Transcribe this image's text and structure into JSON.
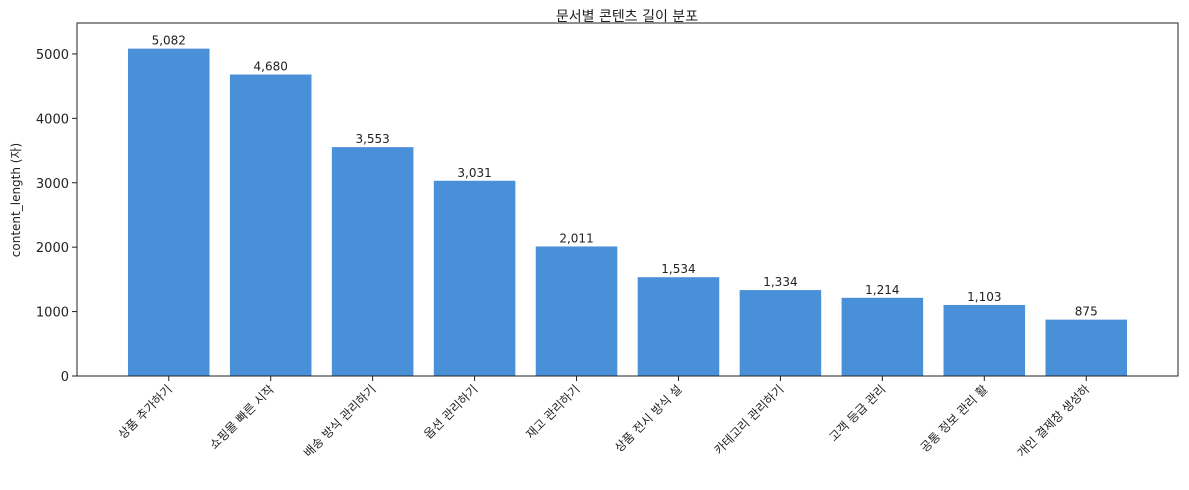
{
  "chart_data": {
    "type": "bar",
    "title": "문서별 콘텐츠 길이 분포",
    "y_label": "content_length (자)",
    "categories": [
      "상품 추가하기",
      "쇼핑몰 빠른 시작",
      "배송 방식 관리하기",
      "옵션 관리하기",
      "재고 관리하기",
      "상품 전시 방식 설",
      "카테고리 관리하기",
      "고객 등급 관리",
      "공통 정보 관리 활",
      "개인 결제창 생성하"
    ],
    "values": [
      5082,
      4680,
      3553,
      3031,
      2011,
      1534,
      1334,
      1214,
      1103,
      875
    ],
    "value_labels": [
      "5,082",
      "4,680",
      "3,553",
      "3,031",
      "2,011",
      "1,534",
      "1,334",
      "1,214",
      "1,103",
      "875"
    ],
    "color": "#4a90d9",
    "ylim": [
      0,
      5480
    ],
    "yticks": [
      0,
      1000,
      2000,
      3000,
      4000,
      5000
    ]
  }
}
